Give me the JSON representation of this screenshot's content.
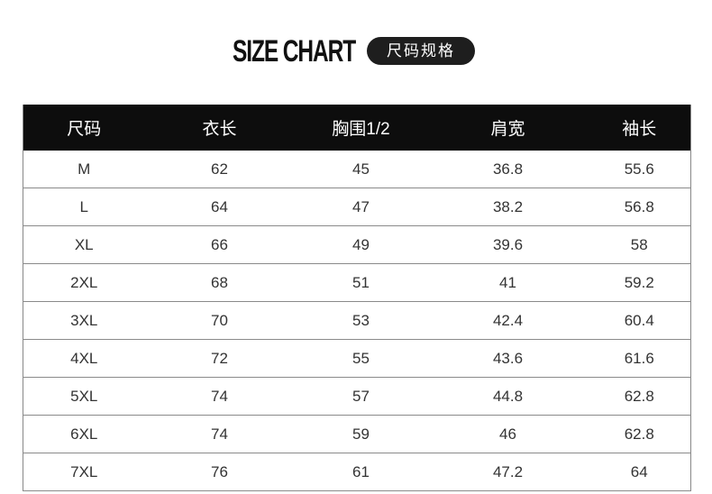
{
  "header": {
    "title": "SIZE CHART",
    "badge": "尺码规格"
  },
  "table": {
    "columns": [
      "尺码",
      "衣长",
      "胸围1/2",
      "肩宽",
      "袖长"
    ],
    "rows": [
      [
        "M",
        "62",
        "45",
        "36.8",
        "55.6"
      ],
      [
        "L",
        "64",
        "47",
        "38.2",
        "56.8"
      ],
      [
        "XL",
        "66",
        "49",
        "39.6",
        "58"
      ],
      [
        "2XL",
        "68",
        "51",
        "41",
        "59.2"
      ],
      [
        "3XL",
        "70",
        "53",
        "42.4",
        "60.4"
      ],
      [
        "4XL",
        "72",
        "55",
        "43.6",
        "61.6"
      ],
      [
        "5XL",
        "74",
        "57",
        "44.8",
        "62.8"
      ],
      [
        "6XL",
        "74",
        "59",
        "46",
        "62.8"
      ],
      [
        "7XL",
        "76",
        "61",
        "47.2",
        "64"
      ]
    ]
  }
}
